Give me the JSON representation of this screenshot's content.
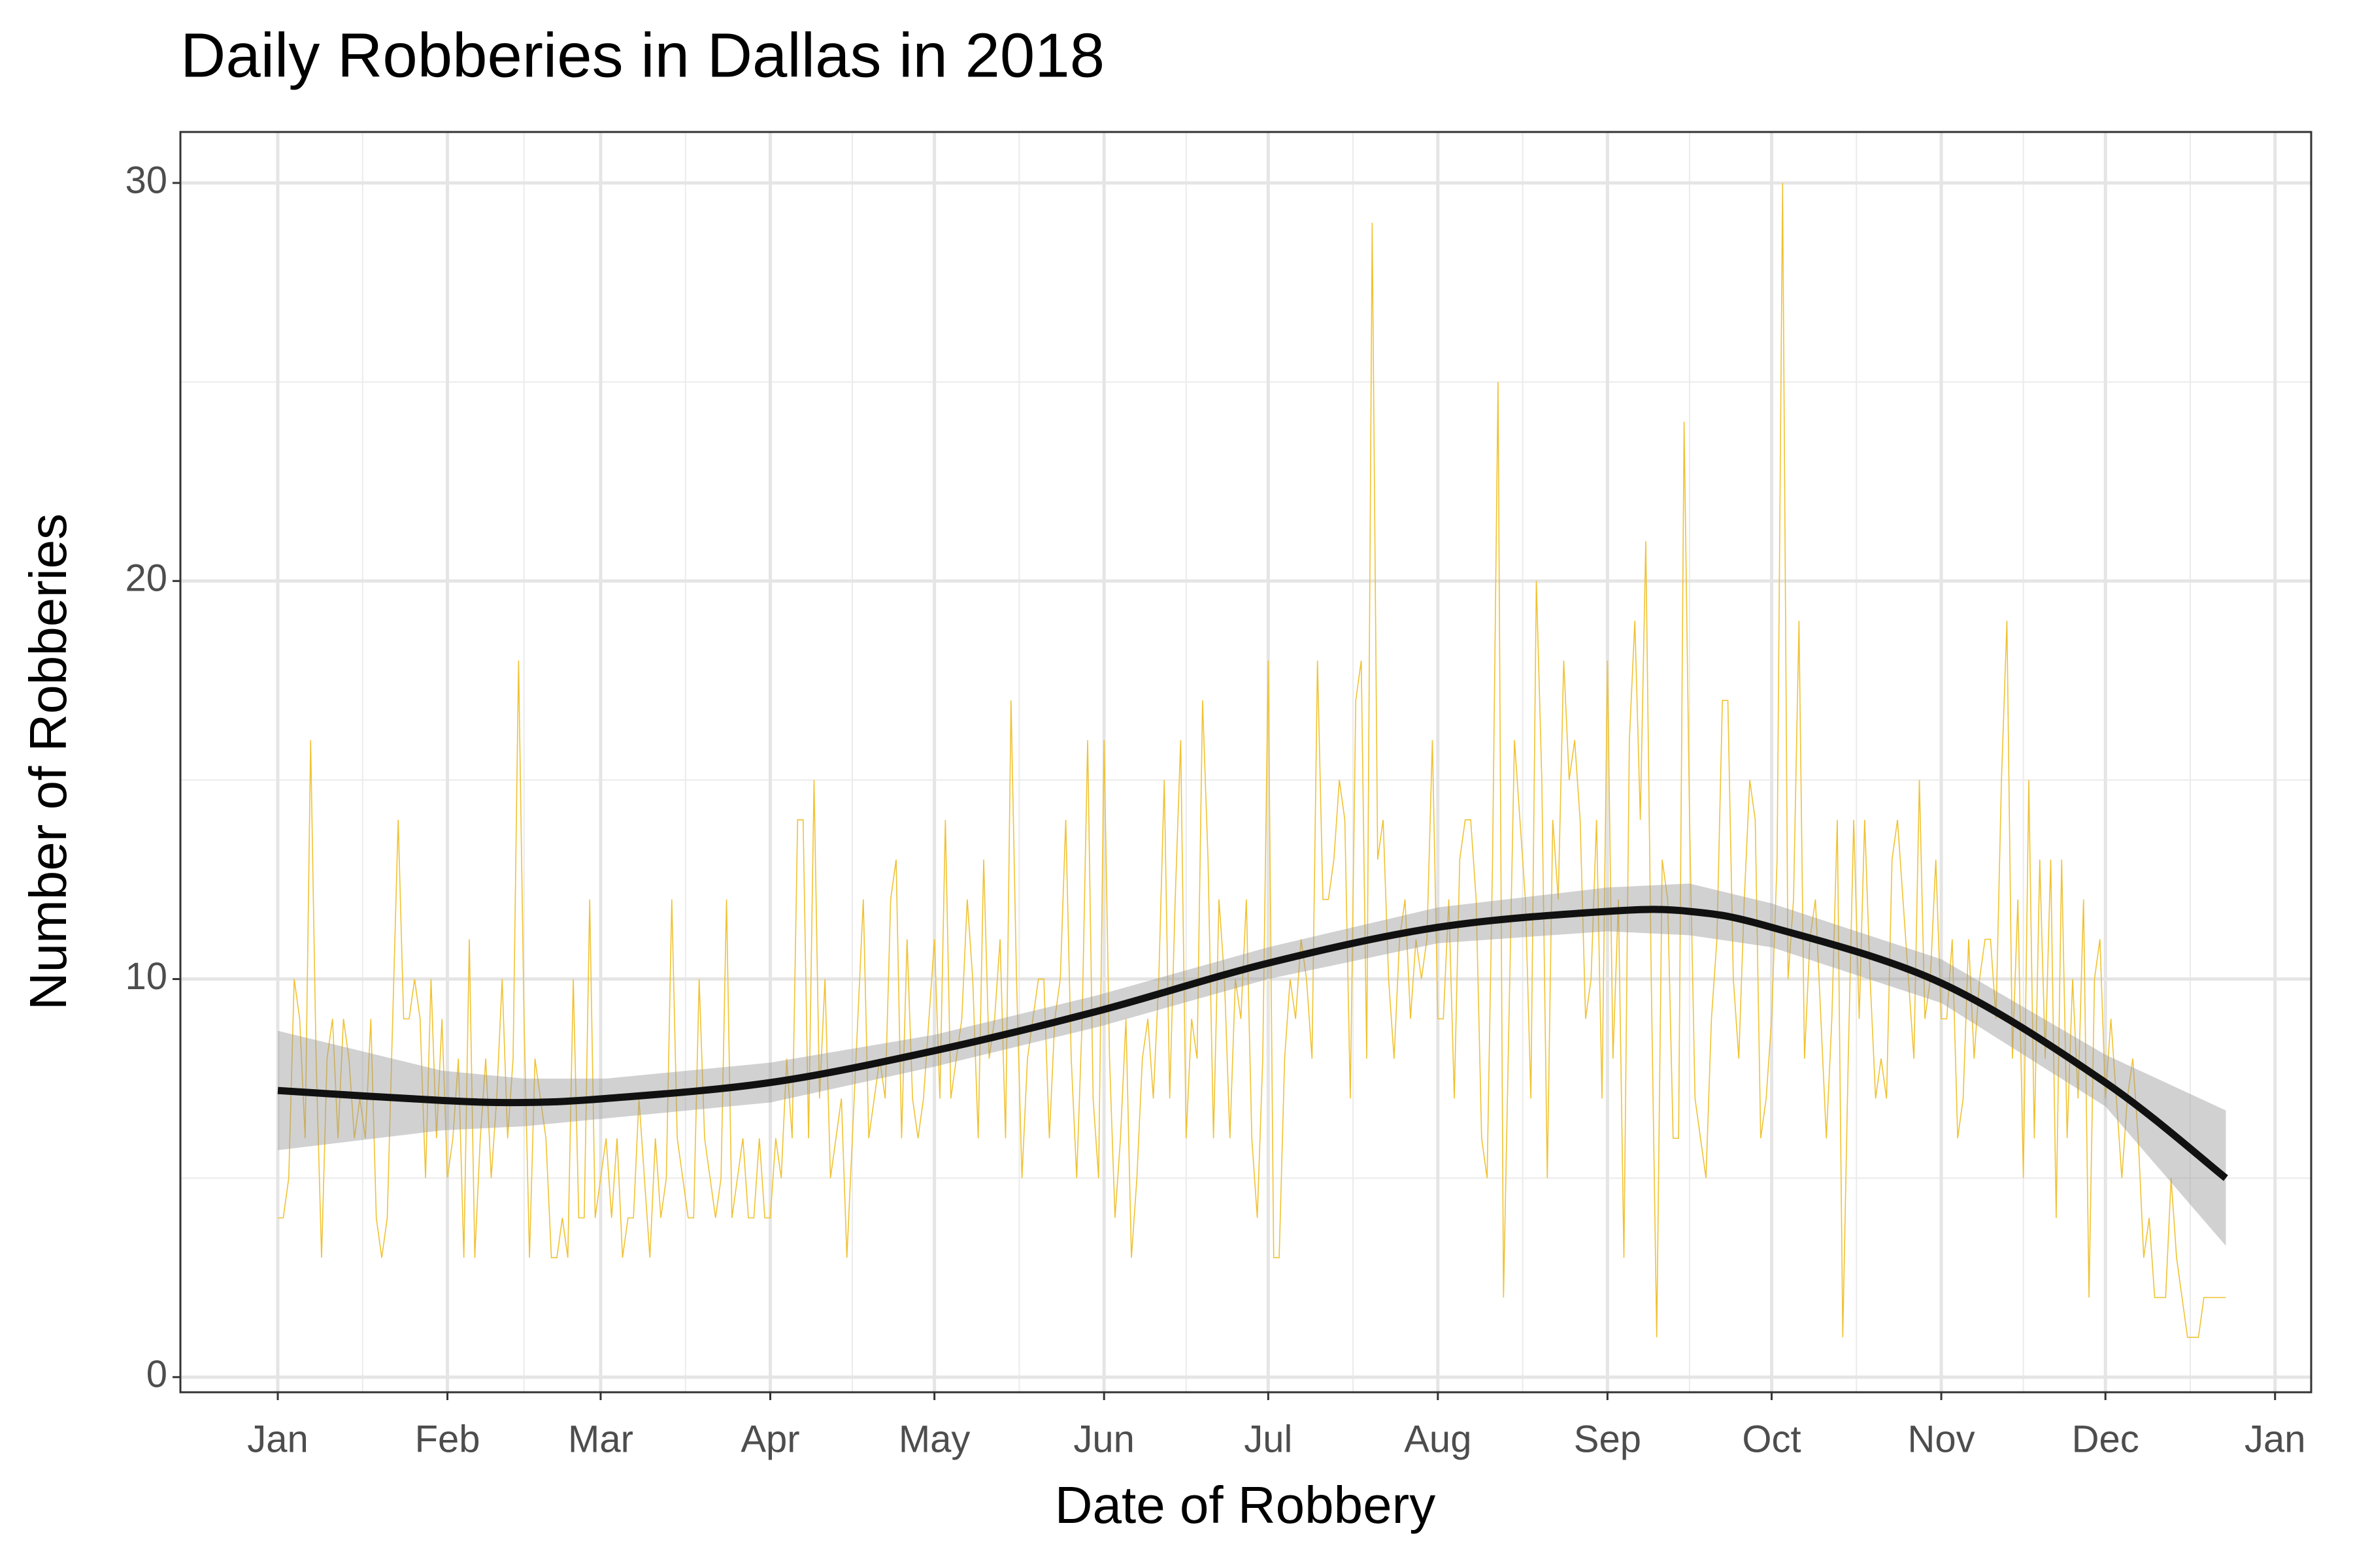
{
  "chart_data": {
    "type": "line",
    "title": "Daily Robberies in Dallas in 2018",
    "x_label": "Date of Robbery",
    "y_label": "Number of Robberies",
    "xlim": [
      -17.8,
      371.6
    ],
    "xticks": [
      {
        "value": 0,
        "label": "Jan"
      },
      {
        "value": 31,
        "label": "Feb"
      },
      {
        "value": 59,
        "label": "Mar"
      },
      {
        "value": 90,
        "label": "Apr"
      },
      {
        "value": 120,
        "label": "May"
      },
      {
        "value": 151,
        "label": "Jun"
      },
      {
        "value": 181,
        "label": "Jul"
      },
      {
        "value": 212,
        "label": "Aug"
      },
      {
        "value": 243,
        "label": "Sep"
      },
      {
        "value": 273,
        "label": "Oct"
      },
      {
        "value": 304,
        "label": "Nov"
      },
      {
        "value": 334,
        "label": "Dec"
      },
      {
        "value": 365,
        "label": "Jan"
      }
    ],
    "x_minor_ticks": [
      15.5,
      45,
      74.5,
      105,
      135.5,
      166,
      196.5,
      227.5,
      258,
      288.5,
      319,
      349.5
    ],
    "ylim": [
      -0.38,
      31.28
    ],
    "yticks": [
      0,
      10,
      20,
      30
    ],
    "y_minor_ticks": [
      5,
      15,
      25
    ],
    "grid": true,
    "color": "#f0c232",
    "x": [
      0,
      1,
      2,
      3,
      4,
      5,
      6,
      7,
      8,
      9,
      10,
      11,
      12,
      13,
      14,
      15,
      16,
      17,
      18,
      19,
      20,
      21,
      22,
      23,
      24,
      25,
      26,
      27,
      28,
      29,
      30,
      31,
      32,
      33,
      34,
      35,
      36,
      37,
      38,
      39,
      40,
      41,
      42,
      43,
      44,
      45,
      46,
      47,
      48,
      49,
      50,
      51,
      52,
      53,
      54,
      55,
      56,
      57,
      58,
      59,
      60,
      61,
      62,
      63,
      64,
      65,
      66,
      67,
      68,
      69,
      70,
      71,
      72,
      73,
      74,
      75,
      76,
      77,
      78,
      79,
      80,
      81,
      82,
      83,
      84,
      85,
      86,
      87,
      88,
      89,
      90,
      91,
      92,
      93,
      94,
      95,
      96,
      97,
      98,
      99,
      100,
      101,
      102,
      103,
      104,
      105,
      106,
      107,
      108,
      109,
      110,
      111,
      112,
      113,
      114,
      115,
      116,
      117,
      118,
      119,
      120,
      121,
      122,
      123,
      124,
      125,
      126,
      127,
      128,
      129,
      130,
      131,
      132,
      133,
      134,
      135,
      136,
      137,
      138,
      139,
      140,
      141,
      142,
      143,
      144,
      145,
      146,
      147,
      148,
      149,
      150,
      151,
      152,
      153,
      154,
      155,
      156,
      157,
      158,
      159,
      160,
      161,
      162,
      163,
      164,
      165,
      166,
      167,
      168,
      169,
      170,
      171,
      172,
      173,
      174,
      175,
      176,
      177,
      178,
      179,
      180,
      181,
      182,
      183,
      184,
      185,
      186,
      187,
      188,
      189,
      190,
      191,
      192,
      193,
      194,
      195,
      196,
      197,
      198,
      199,
      200,
      201,
      202,
      203,
      204,
      205,
      206,
      207,
      208,
      209,
      210,
      211,
      212,
      213,
      214,
      215,
      216,
      217,
      218,
      219,
      220,
      221,
      222,
      223,
      224,
      225,
      226,
      227,
      228,
      229,
      230,
      231,
      232,
      233,
      234,
      235,
      236,
      237,
      238,
      239,
      240,
      241,
      242,
      243,
      244,
      245,
      246,
      247,
      248,
      249,
      250,
      251,
      252,
      253,
      254,
      255,
      256,
      257,
      258,
      259,
      260,
      261,
      262,
      263,
      264,
      265,
      266,
      267,
      268,
      269,
      270,
      271,
      272,
      273,
      274,
      275,
      276,
      277,
      278,
      279,
      280,
      281,
      282,
      283,
      284,
      285,
      286,
      287,
      288,
      289,
      290,
      291,
      292,
      293,
      294,
      295,
      296,
      297,
      298,
      299,
      300,
      301,
      302,
      303,
      304,
      305,
      306,
      307,
      308,
      309,
      310,
      311,
      312,
      313,
      314,
      315,
      316,
      317,
      318,
      319,
      320,
      321,
      322,
      323,
      324,
      325,
      326,
      327,
      328,
      329,
      330,
      331,
      332,
      333,
      334,
      335,
      336,
      337,
      338,
      339,
      340,
      341,
      342,
      343,
      344,
      345,
      346,
      347,
      348,
      349,
      350,
      351,
      352,
      353,
      354,
      355,
      356
    ],
    "values": [
      4,
      4,
      5,
      10,
      9,
      6,
      16,
      8,
      3,
      8,
      9,
      6,
      9,
      8,
      6,
      7,
      6,
      9,
      4,
      3,
      4,
      9,
      14,
      9,
      9,
      10,
      9,
      5,
      10,
      6,
      9,
      5,
      6,
      8,
      3,
      11,
      3,
      6,
      8,
      5,
      7,
      10,
      6,
      8,
      18,
      9,
      3,
      8,
      7,
      6,
      3,
      3,
      4,
      3,
      10,
      4,
      4,
      12,
      4,
      5,
      6,
      4,
      6,
      3,
      4,
      4,
      7,
      5,
      3,
      6,
      4,
      5,
      12,
      6,
      5,
      4,
      4,
      10,
      6,
      5,
      4,
      5,
      12,
      4,
      5,
      6,
      4,
      4,
      6,
      4,
      4,
      6,
      5,
      8,
      6,
      14,
      14,
      6,
      15,
      7,
      10,
      5,
      6,
      7,
      3,
      6,
      9,
      12,
      6,
      7,
      8,
      7,
      12,
      13,
      6,
      11,
      7,
      6,
      7,
      9,
      11,
      7,
      14,
      7,
      8,
      9,
      12,
      10,
      6,
      13,
      8,
      9,
      11,
      6,
      17,
      10,
      5,
      8,
      9,
      10,
      10,
      6,
      9,
      10,
      14,
      8,
      5,
      9,
      16,
      7,
      5,
      16,
      8,
      4,
      6,
      9,
      3,
      5,
      8,
      9,
      7,
      10,
      15,
      7,
      12,
      16,
      6,
      9,
      8,
      17,
      13,
      6,
      12,
      10,
      6,
      10,
      9,
      12,
      6,
      4,
      8,
      18,
      3,
      3,
      8,
      10,
      9,
      11,
      10,
      8,
      18,
      12,
      12,
      13,
      15,
      14,
      7,
      17,
      18,
      8,
      29,
      13,
      14,
      10,
      8,
      11,
      12,
      9,
      11,
      10,
      11,
      16,
      9,
      9,
      12,
      7,
      13,
      14,
      14,
      12,
      6,
      5,
      13,
      25,
      2,
      9,
      16,
      14,
      12,
      7,
      20,
      15,
      5,
      14,
      12,
      18,
      15,
      16,
      14,
      9,
      10,
      14,
      7,
      18,
      8,
      12,
      3,
      16,
      19,
      14,
      21,
      10,
      1,
      13,
      12,
      6,
      6,
      24,
      14,
      7,
      6,
      5,
      9,
      11,
      17,
      17,
      10,
      8,
      12,
      15,
      14,
      6,
      7,
      9,
      13,
      30,
      10,
      12,
      19,
      8,
      11,
      12,
      9,
      6,
      9,
      14,
      1,
      8,
      14,
      9,
      14,
      10,
      7,
      8,
      7,
      13,
      14,
      12,
      10,
      8,
      15,
      9,
      10,
      13,
      9,
      9,
      11,
      6,
      7,
      11,
      8,
      10,
      11,
      11,
      9,
      15,
      19,
      8,
      12,
      5,
      15,
      6,
      13,
      8,
      13,
      4,
      13,
      6,
      10,
      7,
      12,
      2,
      10,
      11,
      7,
      9,
      7,
      5,
      7,
      8,
      6,
      3,
      4,
      2,
      2,
      2,
      5,
      3,
      2,
      1,
      1,
      1,
      2,
      2,
      2,
      2,
      2
    ],
    "smooth": {
      "color": "#111111",
      "band_color": "#999999",
      "x": [
        0,
        30,
        45,
        60,
        90,
        120,
        150,
        181,
        212,
        243,
        258,
        273,
        304,
        334,
        356
      ],
      "values": [
        7.2,
        6.95,
        6.9,
        7.0,
        7.4,
        8.2,
        9.2,
        10.4,
        11.3,
        11.7,
        11.7,
        11.3,
        9.9,
        7.4,
        5.0
      ],
      "lower": [
        5.7,
        6.2,
        6.3,
        6.5,
        6.9,
        7.8,
        8.8,
        10.0,
        10.9,
        11.2,
        11.1,
        10.8,
        9.4,
        6.8,
        3.3
      ],
      "upper": [
        8.7,
        7.7,
        7.5,
        7.5,
        7.9,
        8.6,
        9.6,
        10.8,
        11.8,
        12.3,
        12.4,
        11.9,
        10.5,
        8.1,
        6.7
      ]
    }
  }
}
